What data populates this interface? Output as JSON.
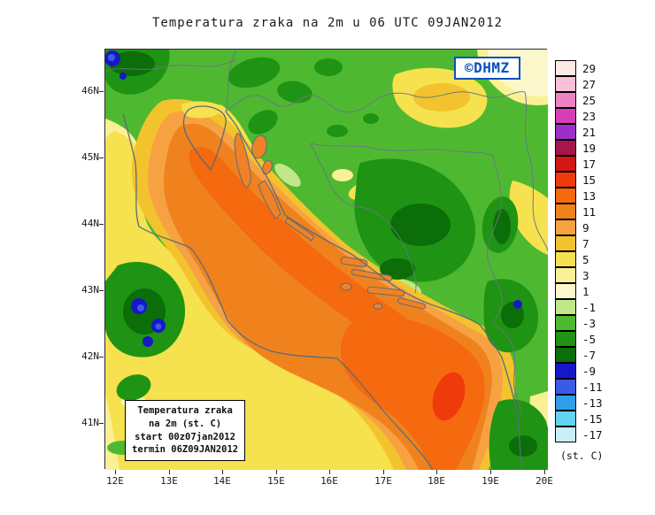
{
  "title": "Temperatura zraka na 2m u 06 UTC 09JAN2012",
  "watermark": {
    "text": "©DHMZ",
    "color": "#0a4fc0"
  },
  "axes": {
    "y_ticks": [
      "46N",
      "45N",
      "44N",
      "43N",
      "42N",
      "41N"
    ],
    "x_ticks": [
      "12E",
      "13E",
      "14E",
      "15E",
      "16E",
      "17E",
      "18E",
      "19E",
      "20E"
    ]
  },
  "legend": {
    "unit": "(st. C)",
    "entries": [
      {
        "value": "29",
        "color": "#fce8e4"
      },
      {
        "value": "27",
        "color": "#f9c0d8"
      },
      {
        "value": "25",
        "color": "#ef82c4"
      },
      {
        "value": "23",
        "color": "#d63fb4"
      },
      {
        "value": "21",
        "color": "#9b30c8"
      },
      {
        "value": "19",
        "color": "#a4164c"
      },
      {
        "value": "17",
        "color": "#d31616"
      },
      {
        "value": "15",
        "color": "#ef3a0c"
      },
      {
        "value": "13",
        "color": "#f5690f"
      },
      {
        "value": "11",
        "color": "#f0821e"
      },
      {
        "value": "9",
        "color": "#f6a242"
      },
      {
        "value": "7",
        "color": "#f3c32e"
      },
      {
        "value": "5",
        "color": "#f6e14e"
      },
      {
        "value": "3",
        "color": "#faf096"
      },
      {
        "value": "1",
        "color": "#fdf8cc"
      },
      {
        "value": "-1",
        "color": "#c2e788"
      },
      {
        "value": "-3",
        "color": "#4eb930"
      },
      {
        "value": "-5",
        "color": "#1f9414"
      },
      {
        "value": "-7",
        "color": "#0b6e08"
      },
      {
        "value": "-9",
        "color": "#1717c8"
      },
      {
        "value": "-11",
        "color": "#3c5ae8"
      },
      {
        "value": "-13",
        "color": "#2f9fe8"
      },
      {
        "value": "-15",
        "color": "#62d4f2"
      },
      {
        "value": "-17",
        "color": "#c8f0fa"
      }
    ]
  },
  "info_box": {
    "lines": [
      "Temperatura zraka",
      "na 2m (st. C)",
      "start 00z07jan2012",
      "termin 06Z09JAN2012"
    ]
  }
}
